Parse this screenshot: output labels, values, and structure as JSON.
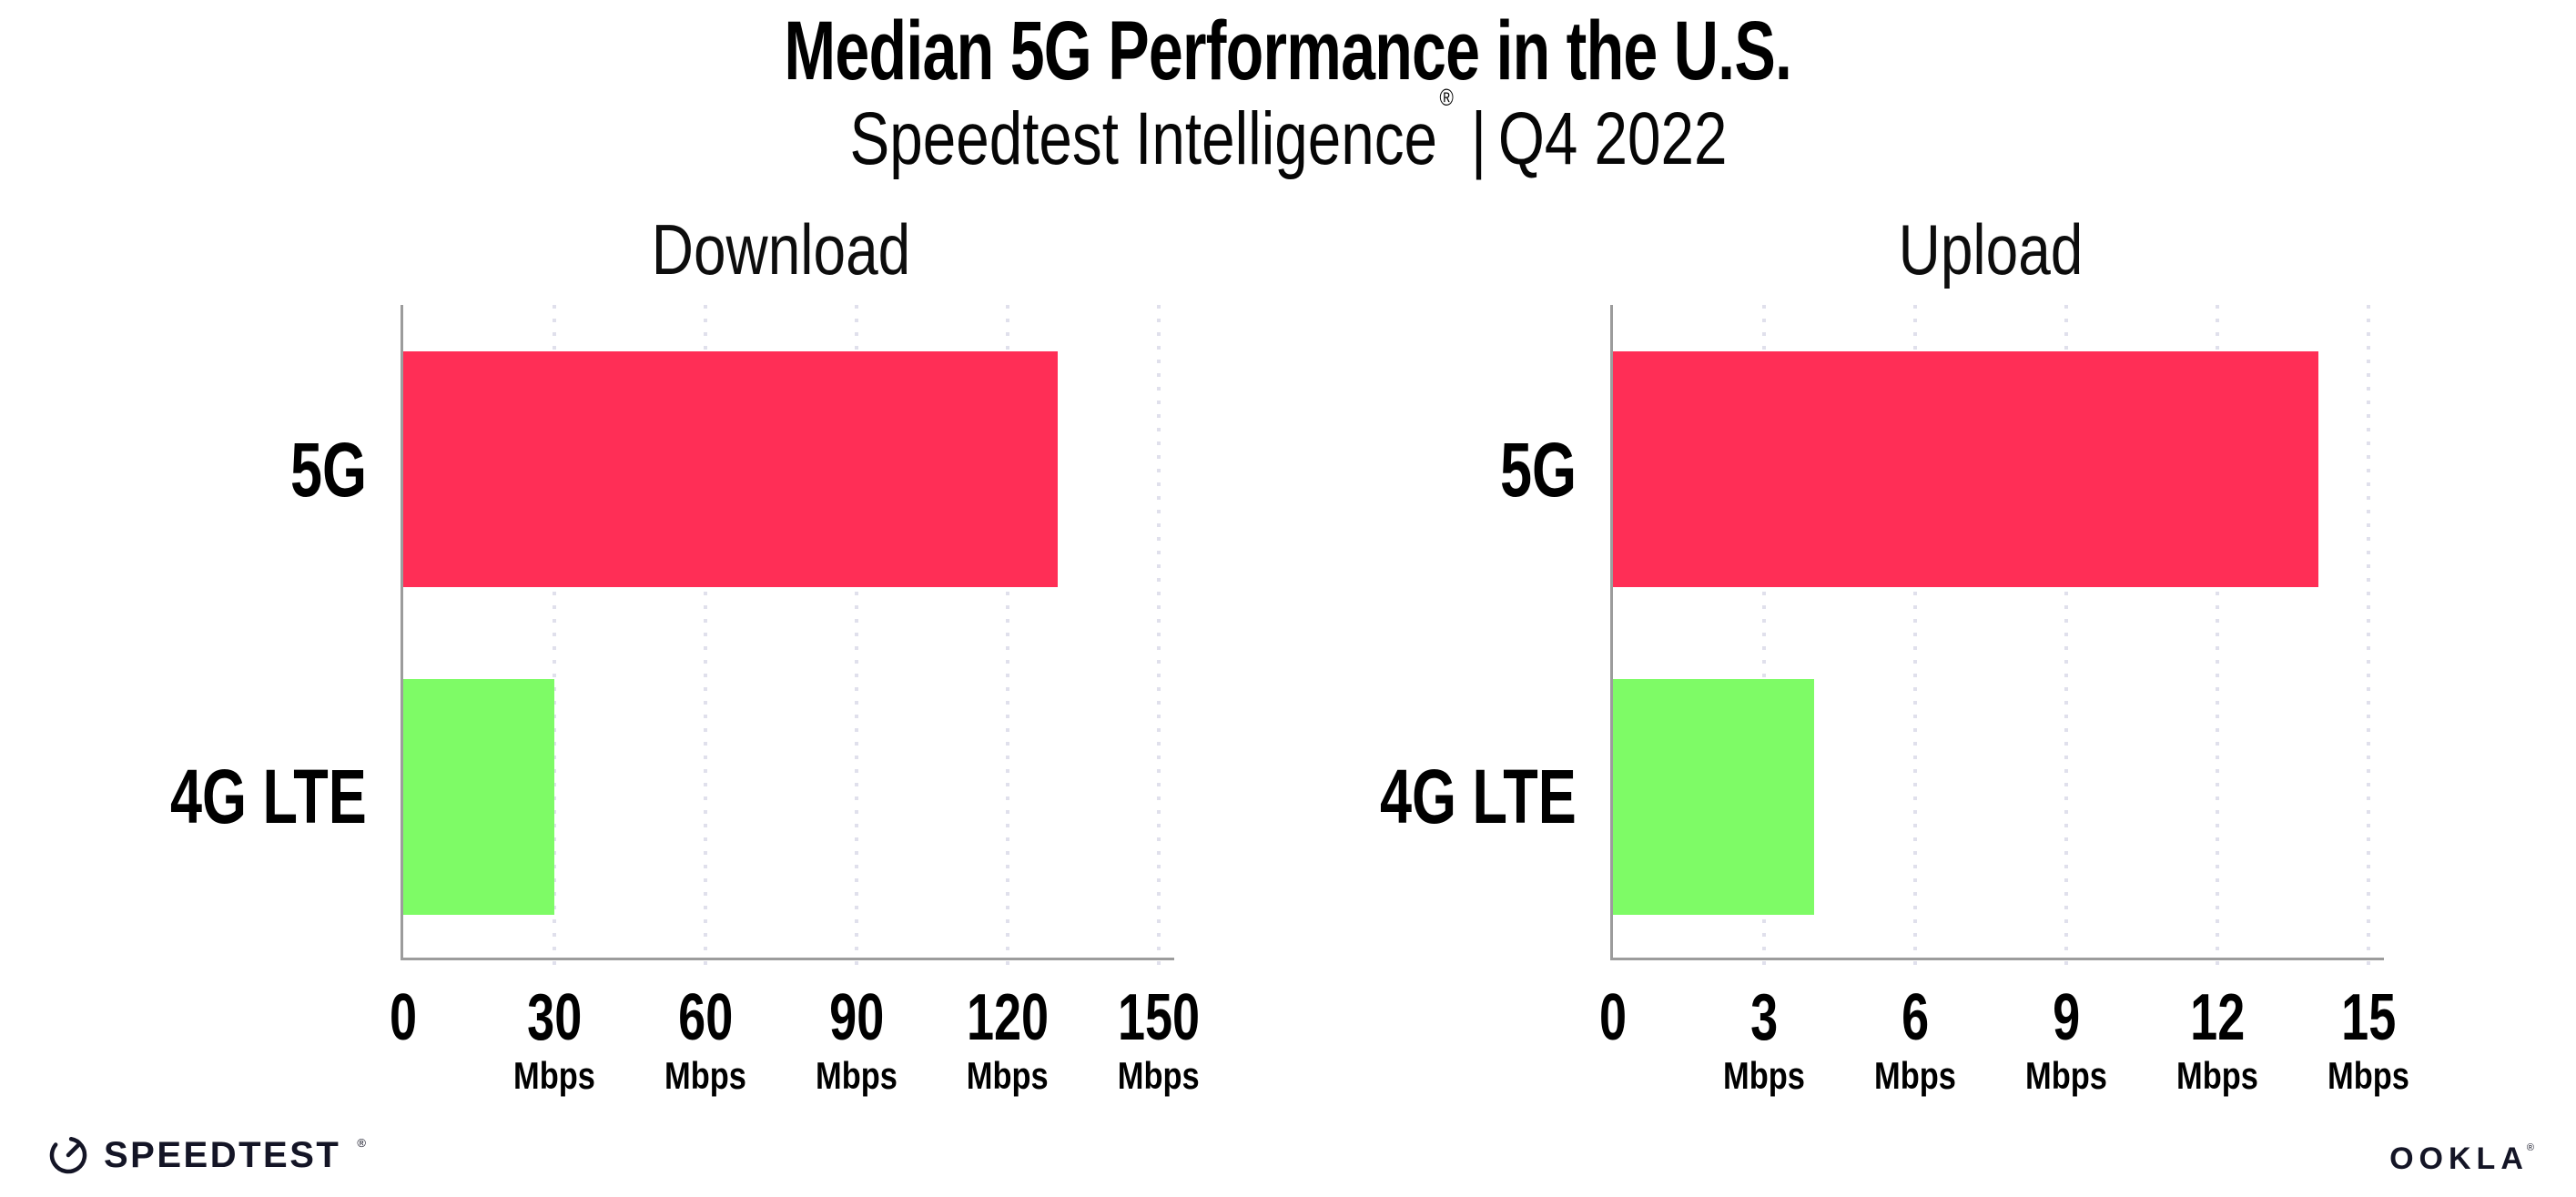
{
  "header": {
    "title": "Median 5G Performance in the U.S.",
    "subtitle_product": "Speedtest Intelligence",
    "subtitle_reg": "®",
    "subtitle_divider": "|",
    "subtitle_period": "Q4 2022"
  },
  "chart_data": [
    {
      "type": "bar",
      "orientation": "horizontal",
      "title": "Download",
      "categories": [
        "5G",
        "4G LTE"
      ],
      "values": [
        130,
        30
      ],
      "value_unit": "Mbps",
      "xlim": [
        0,
        150
      ],
      "ticks": [
        0,
        30,
        60,
        90,
        120,
        150
      ],
      "tick_unit_label": "Mbps",
      "bar_colors": [
        "#FF2E56",
        "#7EFB66"
      ],
      "grid": "dotted-vertical",
      "legend": "none"
    },
    {
      "type": "bar",
      "orientation": "horizontal",
      "title": "Upload",
      "categories": [
        "5G",
        "4G LTE"
      ],
      "values": [
        14,
        4
      ],
      "value_unit": "Mbps",
      "xlim": [
        0,
        15
      ],
      "ticks": [
        0,
        3,
        6,
        9,
        12,
        15
      ],
      "tick_unit_label": "Mbps",
      "bar_colors": [
        "#FF2E56",
        "#7EFB66"
      ],
      "grid": "dotted-vertical",
      "legend": "none"
    }
  ],
  "footer": {
    "speedtest_logo_text": "SPEEDTEST",
    "speedtest_logo_reg": "®",
    "speedtest_icon": "gauge-icon",
    "ookla_logo_text": "OOKLA",
    "ookla_logo_reg": "®"
  },
  "colors": {
    "bar_5g": "#FF2E56",
    "bar_4g_lte": "#7EFB66",
    "axis": "#9c9c9c",
    "gridline": "#e0e0ec",
    "text": "#000000",
    "logo": "#141526",
    "background": "#ffffff"
  }
}
